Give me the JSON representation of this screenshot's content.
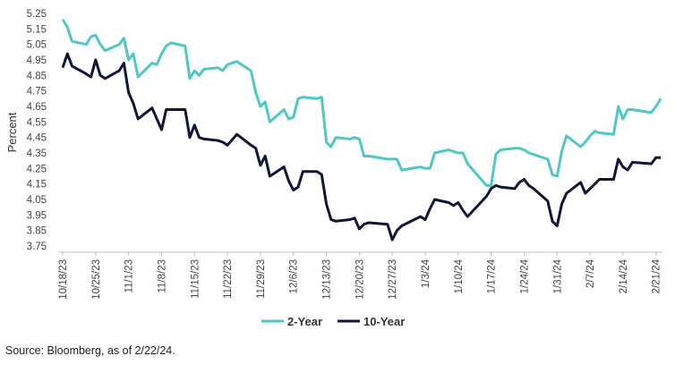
{
  "chart_data": {
    "type": "line",
    "title": "",
    "xlabel": "",
    "ylabel": "Percent",
    "ylim": [
      3.7,
      5.3
    ],
    "y_ticks": [
      5.25,
      5.15,
      5.05,
      4.95,
      4.85,
      4.75,
      4.65,
      4.55,
      4.45,
      4.35,
      4.25,
      4.15,
      4.05,
      3.95,
      3.85,
      3.75
    ],
    "y_tick_labels": [
      "5.25",
      "5.15",
      "5.05",
      "4.95",
      "4.85",
      "4.75",
      "4.65",
      "4.55",
      "4.45",
      "4.35",
      "4.25",
      "4.15",
      "4.05",
      "3.95",
      "3.85",
      "3.75"
    ],
    "grid": false,
    "legend_position": "bottom-center",
    "x_tick_labels": [
      "10/18/23",
      "10/25/23",
      "11/1/23",
      "11/8/23",
      "11/15/23",
      "11/22/23",
      "11/29/23",
      "12/6/23",
      "12/13/23",
      "12/20/23",
      "12/27/23",
      "1/3/24",
      "1/10/24",
      "1/17/24",
      "1/24/24",
      "1/31/24",
      "2/7/24",
      "2/14/24",
      "2/21/24"
    ],
    "x_dates": [
      "2023-10-18",
      "2023-10-19",
      "2023-10-20",
      "2023-10-23",
      "2023-10-24",
      "2023-10-25",
      "2023-10-26",
      "2023-10-27",
      "2023-10-30",
      "2023-10-31",
      "2023-11-01",
      "2023-11-02",
      "2023-11-03",
      "2023-11-06",
      "2023-11-07",
      "2023-11-08",
      "2023-11-09",
      "2023-11-10",
      "2023-11-13",
      "2023-11-14",
      "2023-11-15",
      "2023-11-16",
      "2023-11-17",
      "2023-11-20",
      "2023-11-21",
      "2023-11-22",
      "2023-11-24",
      "2023-11-27",
      "2023-11-28",
      "2023-11-29",
      "2023-11-30",
      "2023-12-01",
      "2023-12-04",
      "2023-12-05",
      "2023-12-06",
      "2023-12-07",
      "2023-12-08",
      "2023-12-11",
      "2023-12-12",
      "2023-12-13",
      "2023-12-14",
      "2023-12-15",
      "2023-12-18",
      "2023-12-19",
      "2023-12-20",
      "2023-12-21",
      "2023-12-22",
      "2023-12-26",
      "2023-12-27",
      "2023-12-28",
      "2023-12-29",
      "2024-01-02",
      "2024-01-03",
      "2024-01-04",
      "2024-01-05",
      "2024-01-08",
      "2024-01-09",
      "2024-01-10",
      "2024-01-11",
      "2024-01-12",
      "2024-01-16",
      "2024-01-17",
      "2024-01-18",
      "2024-01-19",
      "2024-01-22",
      "2024-01-23",
      "2024-01-24",
      "2024-01-25",
      "2024-01-26",
      "2024-01-29",
      "2024-01-30",
      "2024-01-31",
      "2024-02-01",
      "2024-02-02",
      "2024-02-05",
      "2024-02-06",
      "2024-02-07",
      "2024-02-08",
      "2024-02-09",
      "2024-02-12",
      "2024-02-13",
      "2024-02-14",
      "2024-02-15",
      "2024-02-16",
      "2024-02-20",
      "2024-02-21",
      "2024-02-22"
    ],
    "series": [
      {
        "name": "2-Year",
        "color": "#4fc8c5",
        "values": [
          5.21,
          5.16,
          5.07,
          5.05,
          5.1,
          5.11,
          5.05,
          5.01,
          5.05,
          5.09,
          4.95,
          4.99,
          4.84,
          4.93,
          4.92,
          4.99,
          5.04,
          5.06,
          5.04,
          4.83,
          4.88,
          4.85,
          4.89,
          4.9,
          4.88,
          4.92,
          4.94,
          4.88,
          4.74,
          4.65,
          4.68,
          4.55,
          4.63,
          4.57,
          4.58,
          4.7,
          4.71,
          4.7,
          4.71,
          4.42,
          4.39,
          4.45,
          4.44,
          4.45,
          4.44,
          4.33,
          4.33,
          4.31,
          4.31,
          4.31,
          4.24,
          4.26,
          4.25,
          4.25,
          4.35,
          4.37,
          4.36,
          4.35,
          4.35,
          4.28,
          4.14,
          4.14,
          4.34,
          4.37,
          4.38,
          4.38,
          4.37,
          4.35,
          4.34,
          4.31,
          4.21,
          4.2,
          4.36,
          4.46,
          4.39,
          4.42,
          4.46,
          4.49,
          4.48,
          4.47,
          4.65,
          4.57,
          4.63,
          4.63,
          4.61,
          4.65,
          4.7
        ]
      },
      {
        "name": "10-Year",
        "color": "#0e1639",
        "values": [
          4.9,
          4.99,
          4.91,
          4.86,
          4.84,
          4.95,
          4.85,
          4.83,
          4.88,
          4.93,
          4.74,
          4.67,
          4.57,
          4.64,
          4.57,
          4.5,
          4.63,
          4.63,
          4.63,
          4.45,
          4.53,
          4.45,
          4.44,
          4.43,
          4.42,
          4.4,
          4.47,
          4.4,
          4.38,
          4.27,
          4.33,
          4.2,
          4.26,
          4.17,
          4.11,
          4.13,
          4.23,
          4.23,
          4.21,
          4.02,
          3.92,
          3.91,
          3.92,
          3.93,
          3.86,
          3.89,
          3.9,
          3.89,
          3.79,
          3.85,
          3.88,
          3.94,
          3.92,
          3.99,
          4.05,
          4.03,
          4.01,
          4.03,
          3.98,
          3.94,
          4.07,
          4.12,
          4.14,
          4.13,
          4.12,
          4.16,
          4.18,
          4.14,
          4.12,
          4.04,
          3.91,
          3.88,
          4.02,
          4.09,
          4.16,
          4.09,
          4.12,
          4.15,
          4.18,
          4.18,
          4.31,
          4.26,
          4.24,
          4.29,
          4.28,
          4.32,
          4.32
        ]
      }
    ]
  },
  "legend": {
    "items": [
      {
        "label": "2-Year",
        "color": "#4fc8c5"
      },
      {
        "label": "10-Year",
        "color": "#0e1639"
      }
    ]
  },
  "source_text": "Source: Bloomberg, as of 2/22/24."
}
